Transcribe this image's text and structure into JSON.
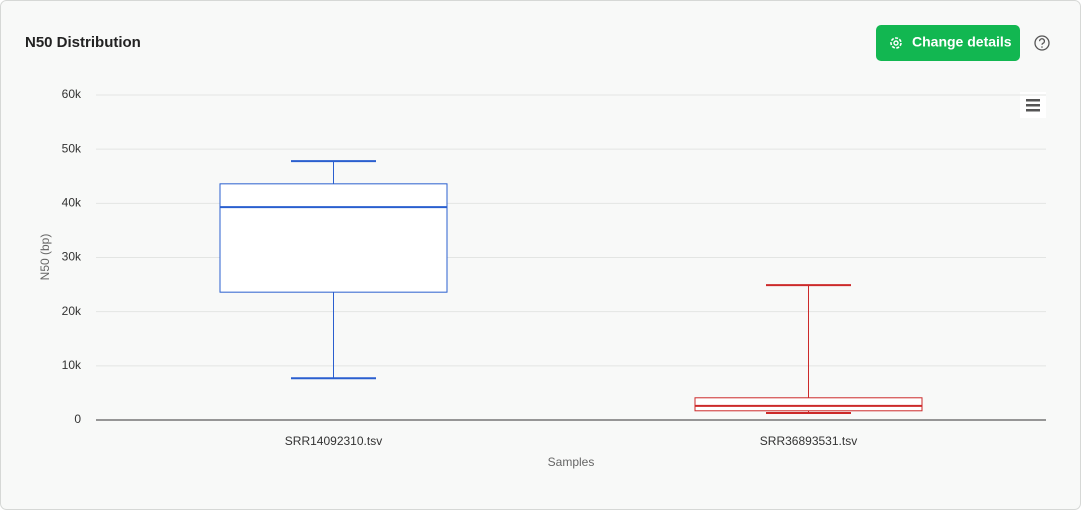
{
  "button_label": "Change details",
  "chart_data": {
    "type": "box",
    "title": "N50 Distribution",
    "x_label": "Samples",
    "y_label": "N50 (bp)",
    "categories": [
      "SRR14092310.tsv",
      "SRR36893531.tsv"
    ],
    "boxes": [
      {
        "color": "#2a5fcf",
        "low": 7700,
        "q1": 23600,
        "median": 39300,
        "q3": 43600,
        "high": 47800
      },
      {
        "color": "#cc2a2a",
        "low": 1300,
        "q1": 1700,
        "median": 2600,
        "q3": 4100,
        "high": 24900
      }
    ],
    "ylim": [
      0,
      60000
    ],
    "yticks": [
      0,
      {
        "value": 10000,
        "label": "10k"
      },
      {
        "value": 20000,
        "label": "20k"
      },
      {
        "value": 30000,
        "label": "30k"
      },
      {
        "value": 40000,
        "label": "40k"
      },
      {
        "value": 50000,
        "label": "50k"
      },
      {
        "value": 60000,
        "label": "60k"
      }
    ],
    "grid": true
  }
}
